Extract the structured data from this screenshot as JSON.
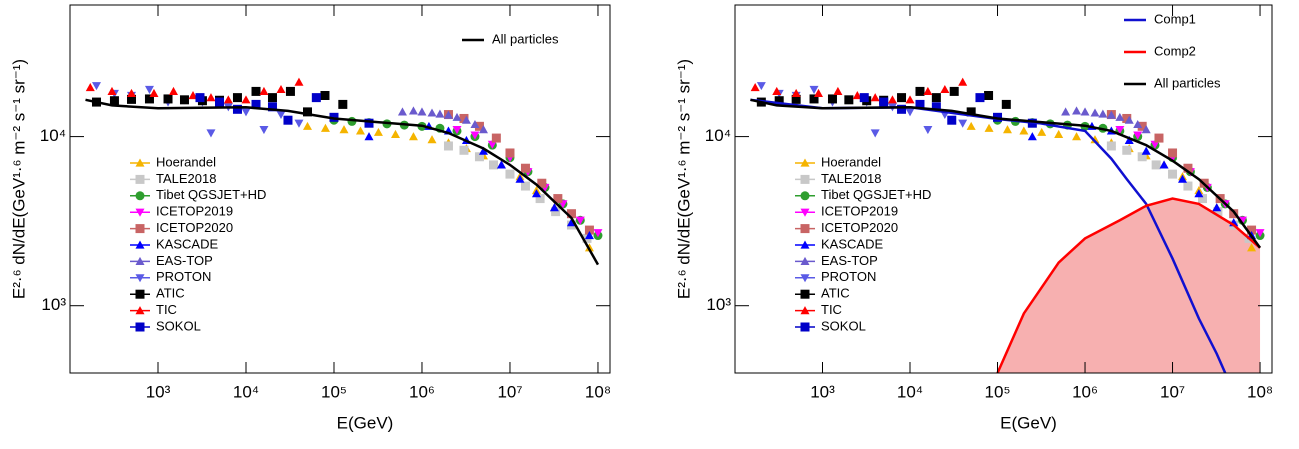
{
  "chart_data": [
    {
      "type": "scatter",
      "xlabel": "E(GeV)",
      "ylabel": "E²·⁶ dN/dE(GeV¹·⁶ m⁻² s⁻¹ sr⁻¹)",
      "log_x": true,
      "log_y": true,
      "xlim": [
        100,
        137000000.0
      ],
      "ylim": [
        400,
        60000
      ],
      "xticks": [
        {
          "value": 1000,
          "label": "10³"
        },
        {
          "value": 10000,
          "label": "10⁴"
        },
        {
          "value": 100000,
          "label": "10⁵"
        },
        {
          "value": 1000000,
          "label": "10⁶"
        },
        {
          "value": 10000000,
          "label": "10⁷"
        },
        {
          "value": 100000000,
          "label": "10⁸"
        }
      ],
      "yticks": [
        {
          "value": 1000,
          "label": "10³"
        },
        {
          "value": 10000,
          "label": "10⁴"
        }
      ],
      "series": [
        {
          "name": "Hoerandel",
          "color": "#f5b400",
          "marker": "triangle-up",
          "x": [
            50000.0,
            80000.0,
            130000.0,
            200000.0,
            320000.0,
            500000.0,
            800000.0,
            1300000.0,
            2000000.0,
            3200000.0,
            5000000.0,
            8000000.0,
            13000000.0,
            20000000.0,
            32000000.0,
            50000000.0,
            80000000.0
          ],
          "values": [
            11500,
            11200,
            11000,
            10800,
            10600,
            10300,
            10000,
            9600,
            9200,
            8500,
            7700,
            6800,
            5800,
            4800,
            3800,
            3000,
            2200
          ]
        },
        {
          "name": "TALE2018",
          "color": "#c8c8c8",
          "marker": "square",
          "x": [
            2000000.0,
            3000000.0,
            4500000.0,
            6500000.0,
            10000000.0,
            15000000.0,
            22000000.0,
            33000000.0,
            50000000.0,
            75000000.0
          ],
          "values": [
            8800,
            8300,
            7600,
            6800,
            6000,
            5100,
            4300,
            3600,
            3000,
            2500
          ]
        },
        {
          "name": "Tibet QGSJET+HD",
          "color": "#2e9e2e",
          "marker": "circle",
          "x": [
            100000.0,
            160000.0,
            250000.0,
            400000.0,
            630000.0,
            1000000.0,
            1600000.0,
            2500000.0,
            4000000.0,
            6300000.0,
            10000000.0,
            16000000.0,
            25000000.0,
            40000000.0,
            63000000.0,
            100000000.0
          ],
          "values": [
            12500,
            12300,
            12100,
            11900,
            11700,
            11500,
            11200,
            10800,
            10000,
            8900,
            7500,
            6200,
            5000,
            4000,
            3200,
            2600
          ]
        },
        {
          "name": "ICETOP2019",
          "color": "#ff00ff",
          "marker": "triangle-down",
          "x": [
            2500000.0,
            4000000.0,
            6300000.0,
            10000000.0,
            16000000.0,
            25000000.0,
            40000000.0,
            63000000.0,
            100000000.0
          ],
          "values": [
            11000,
            10200,
            9000,
            7500,
            6200,
            5000,
            4000,
            3200,
            2700
          ]
        },
        {
          "name": "ICETOP2020",
          "color": "#c86464",
          "marker": "square",
          "x": [
            2000000.0,
            3000000.0,
            4500000.0,
            7000000.0,
            10000000.0,
            15000000.0,
            23000000.0,
            35000000.0,
            50000000.0,
            80000000.0
          ],
          "values": [
            13500,
            12800,
            11500,
            9800,
            8000,
            6500,
            5300,
            4300,
            3500,
            2800
          ]
        },
        {
          "name": "KASCADE",
          "color": "#0000ff",
          "marker": "triangle-up",
          "x": [
            250000.0,
            1200000.0,
            2000000.0,
            3200000.0,
            5000000.0,
            8000000.0,
            13000000.0,
            20000000.0,
            32000000.0,
            50000000.0,
            80000000.0
          ],
          "values": [
            10000,
            11500,
            10800,
            9500,
            8200,
            6800,
            5600,
            4600,
            3800,
            3100,
            2600
          ]
        },
        {
          "name": "EAS-TOP",
          "color": "#6a5acd",
          "marker": "triangle-up",
          "x": [
            600000.0,
            800000.0,
            1000000.0,
            1300000.0,
            1600000.0,
            2000000.0,
            2500000.0,
            3200000.0,
            4000000.0,
            5000000.0
          ],
          "values": [
            14000,
            14200,
            14000,
            13800,
            13600,
            13400,
            13000,
            12500,
            11800,
            11000
          ]
        },
        {
          "name": "PROTON",
          "color": "#5a5ae6",
          "marker": "triangle-down",
          "x": [
            200,
            320,
            500,
            800,
            1300,
            2000,
            3200,
            4000,
            6300,
            10000,
            16000,
            25000,
            40000
          ],
          "values": [
            20000,
            18000,
            17500,
            19000,
            16000,
            16500,
            16000,
            10500,
            15000,
            14000,
            11000,
            13500,
            12000
          ]
        },
        {
          "name": "ATIC",
          "color": "#000000",
          "marker": "square",
          "x": [
            200,
            320,
            500,
            800,
            1300,
            2000,
            3200,
            5000,
            8000,
            13000,
            20000,
            32000,
            50000,
            79000,
            126000
          ],
          "values": [
            16000,
            16300,
            16600,
            16700,
            16700,
            16500,
            16300,
            16400,
            17000,
            18500,
            17000,
            18500,
            14000,
            17500,
            15500
          ]
        },
        {
          "name": "TIC",
          "color": "#ff0000",
          "marker": "triangle-up",
          "x": [
            170,
            300,
            500,
            900,
            1500,
            2500,
            4000,
            6300,
            10000,
            16000,
            25000,
            40000
          ],
          "values": [
            19500,
            18500,
            18000,
            18000,
            18500,
            17500,
            17000,
            16500,
            16500,
            18500,
            19000,
            21000
          ]
        },
        {
          "name": "SOKOL",
          "color": "#0000c8",
          "marker": "square",
          "x": [
            3000,
            5000,
            8000,
            13000,
            20000,
            30000,
            63000,
            100000,
            250000
          ],
          "values": [
            17000,
            16000,
            14500,
            15500,
            15000,
            12500,
            17000,
            13000,
            12000
          ]
        },
        {
          "name": "All particles",
          "color": "#000000",
          "marker": "line",
          "x": [
            150,
            300,
            1000,
            3000,
            10000,
            30000,
            100000,
            300000,
            1000000,
            2000000,
            5000000,
            10000000,
            20000000,
            50000000,
            100000000
          ],
          "values": [
            16500,
            15300,
            14700,
            14800,
            14900,
            14200,
            12800,
            12200,
            11600,
            10500,
            8500,
            6800,
            5200,
            3300,
            1750
          ]
        }
      ]
    },
    {
      "type": "scatter",
      "xlabel": "E(GeV)",
      "ylabel": "E²·⁶ dN/dE(GeV¹·⁶ m⁻² s⁻¹ sr⁻¹)",
      "log_x": true,
      "log_y": true,
      "xlim": [
        100,
        137000000.0
      ],
      "ylim": [
        400,
        60000
      ],
      "xticks": [
        {
          "value": 1000,
          "label": "10³"
        },
        {
          "value": 10000,
          "label": "10⁴"
        },
        {
          "value": 100000,
          "label": "10⁵"
        },
        {
          "value": 1000000,
          "label": "10⁶"
        },
        {
          "value": 10000000,
          "label": "10⁷"
        },
        {
          "value": 100000000,
          "label": "10⁸"
        }
      ],
      "yticks": [
        {
          "value": 1000,
          "label": "10³"
        },
        {
          "value": 10000,
          "label": "10⁴"
        }
      ],
      "series": [
        {
          "name": "Hoerandel",
          "color": "#f5b400",
          "marker": "triangle-up",
          "x": [
            50000.0,
            80000.0,
            130000.0,
            200000.0,
            320000.0,
            500000.0,
            800000.0,
            1300000.0,
            2000000.0,
            3200000.0,
            5000000.0,
            8000000.0,
            13000000.0,
            20000000.0,
            32000000.0,
            50000000.0,
            80000000.0
          ],
          "values": [
            11500,
            11200,
            11000,
            10800,
            10600,
            10300,
            10000,
            9600,
            9200,
            8500,
            7700,
            6800,
            5800,
            4800,
            3800,
            3000,
            2200
          ]
        },
        {
          "name": "TALE2018",
          "color": "#c8c8c8",
          "marker": "square",
          "x": [
            2000000.0,
            3000000.0,
            4500000.0,
            6500000.0,
            10000000.0,
            15000000.0,
            22000000.0,
            33000000.0,
            50000000.0,
            75000000.0
          ],
          "values": [
            8800,
            8300,
            7600,
            6800,
            6000,
            5100,
            4300,
            3600,
            3000,
            2500
          ]
        },
        {
          "name": "Tibet QGSJET+HD",
          "color": "#2e9e2e",
          "marker": "circle",
          "x": [
            100000.0,
            160000.0,
            250000.0,
            400000.0,
            630000.0,
            1000000.0,
            1600000.0,
            2500000.0,
            4000000.0,
            6300000.0,
            10000000.0,
            16000000.0,
            25000000.0,
            40000000.0,
            63000000.0,
            100000000.0
          ],
          "values": [
            12500,
            12300,
            12100,
            11900,
            11700,
            11500,
            11200,
            10800,
            10000,
            8900,
            7500,
            6200,
            5000,
            4000,
            3200,
            2600
          ]
        },
        {
          "name": "ICETOP2019",
          "color": "#ff00ff",
          "marker": "triangle-down",
          "x": [
            2500000.0,
            4000000.0,
            6300000.0,
            10000000.0,
            16000000.0,
            25000000.0,
            40000000.0,
            63000000.0,
            100000000.0
          ],
          "values": [
            11000,
            10200,
            9000,
            7500,
            6200,
            5000,
            4000,
            3200,
            2700
          ]
        },
        {
          "name": "ICETOP2020",
          "color": "#c86464",
          "marker": "square",
          "x": [
            2000000.0,
            3000000.0,
            4500000.0,
            7000000.0,
            10000000.0,
            15000000.0,
            23000000.0,
            35000000.0,
            50000000.0,
            80000000.0
          ],
          "values": [
            13500,
            12800,
            11500,
            9800,
            8000,
            6500,
            5300,
            4300,
            3500,
            2800
          ]
        },
        {
          "name": "KASCADE",
          "color": "#0000ff",
          "marker": "triangle-up",
          "x": [
            250000.0,
            1200000.0,
            2000000.0,
            3200000.0,
            5000000.0,
            8000000.0,
            13000000.0,
            20000000.0,
            32000000.0,
            50000000.0,
            80000000.0
          ],
          "values": [
            10000,
            11500,
            10800,
            9500,
            8200,
            6800,
            5600,
            4600,
            3800,
            3100,
            2600
          ]
        },
        {
          "name": "EAS-TOP",
          "color": "#6a5acd",
          "marker": "triangle-up",
          "x": [
            600000.0,
            800000.0,
            1000000.0,
            1300000.0,
            1600000.0,
            2000000.0,
            2500000.0,
            3200000.0,
            4000000.0,
            5000000.0
          ],
          "values": [
            14000,
            14200,
            14000,
            13800,
            13600,
            13400,
            13000,
            12500,
            11800,
            11000
          ]
        },
        {
          "name": "PROTON",
          "color": "#5a5ae6",
          "marker": "triangle-down",
          "x": [
            200,
            320,
            500,
            800,
            1300,
            2000,
            3200,
            4000,
            6300,
            10000,
            16000,
            25000,
            40000
          ],
          "values": [
            20000,
            18000,
            17500,
            19000,
            16000,
            16500,
            16000,
            10500,
            15000,
            14000,
            11000,
            13500,
            12000
          ]
        },
        {
          "name": "ATIC",
          "color": "#000000",
          "marker": "square",
          "x": [
            200,
            320,
            500,
            800,
            1300,
            2000,
            3200,
            5000,
            8000,
            13000,
            20000,
            32000,
            50000,
            79000,
            126000
          ],
          "values": [
            16000,
            16300,
            16600,
            16700,
            16700,
            16500,
            16300,
            16400,
            17000,
            18500,
            17000,
            18500,
            14000,
            17500,
            15500
          ]
        },
        {
          "name": "TIC",
          "color": "#ff0000",
          "marker": "triangle-up",
          "x": [
            170,
            300,
            500,
            900,
            1500,
            2500,
            4000,
            6300,
            10000,
            16000,
            25000,
            40000
          ],
          "values": [
            19500,
            18500,
            18000,
            18000,
            18500,
            17500,
            17000,
            16500,
            16500,
            18500,
            19000,
            21000
          ]
        },
        {
          "name": "SOKOL",
          "color": "#0000c8",
          "marker": "square",
          "x": [
            3000,
            5000,
            8000,
            13000,
            20000,
            30000,
            63000,
            100000,
            250000
          ],
          "values": [
            17000,
            16000,
            14500,
            15500,
            15000,
            12500,
            17000,
            13000,
            12000
          ]
        },
        {
          "name": "Comp1",
          "color": "#1010d0",
          "marker": "line",
          "x": [
            150,
            1000,
            10000,
            100000,
            300000,
            1000000,
            2000000,
            3000000,
            5000000,
            10000000,
            20000000,
            32000000,
            40000000
          ],
          "values": [
            16500,
            14700,
            14900,
            12700,
            12000,
            10800,
            7400,
            5600,
            4000,
            1900,
            840,
            520,
            400
          ]
        },
        {
          "name": "Comp2",
          "color": "#ff0000",
          "marker": "line",
          "fill": "#f7b0b0",
          "x": [
            100000,
            200000,
            500000,
            1000000,
            2500000,
            5000000,
            10000000,
            20000000,
            50000000,
            100000000
          ],
          "values": [
            400,
            900,
            1800,
            2500,
            3200,
            3900,
            4300,
            4000,
            3000,
            2200
          ]
        },
        {
          "name": "All particles",
          "color": "#000000",
          "marker": "line",
          "x": [
            150,
            300,
            1000,
            3000,
            10000,
            30000,
            100000,
            300000,
            1000000,
            2000000,
            5000000,
            10000000,
            20000000,
            50000000,
            100000000
          ],
          "values": [
            16500,
            15300,
            14700,
            14800,
            14900,
            14200,
            12800,
            12200,
            11600,
            10800,
            8900,
            7200,
            5600,
            3600,
            2200
          ]
        }
      ]
    }
  ]
}
